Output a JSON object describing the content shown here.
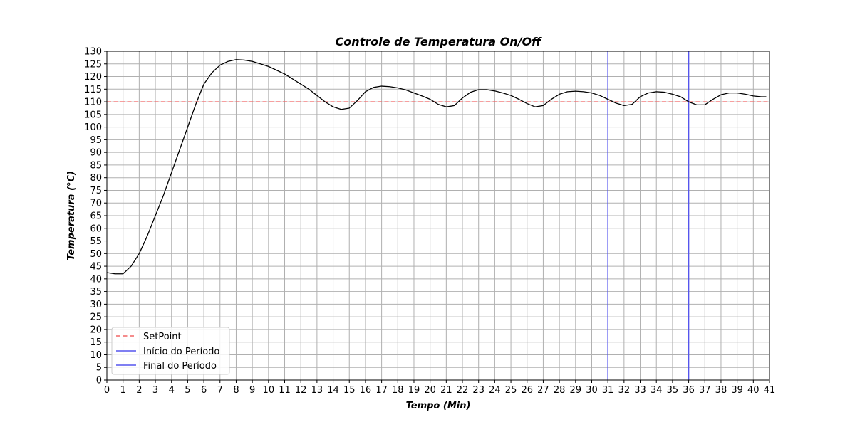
{
  "chart_data": {
    "type": "line",
    "title": "Controle de Temperatura On/Off",
    "xlabel": "Tempo (Min)",
    "ylabel": "Temperatura (°C)",
    "xlim": [
      0,
      41
    ],
    "ylim": [
      0,
      130
    ],
    "x_ticks": [
      0,
      1,
      2,
      3,
      4,
      5,
      6,
      7,
      8,
      9,
      10,
      11,
      12,
      13,
      14,
      15,
      16,
      17,
      18,
      19,
      20,
      21,
      22,
      23,
      24,
      25,
      26,
      27,
      28,
      29,
      30,
      31,
      32,
      33,
      34,
      35,
      36,
      37,
      38,
      39,
      40,
      41
    ],
    "y_ticks": [
      0,
      5,
      10,
      15,
      20,
      25,
      30,
      35,
      40,
      45,
      50,
      55,
      60,
      65,
      70,
      75,
      80,
      85,
      90,
      95,
      100,
      105,
      110,
      115,
      120,
      125,
      130
    ],
    "grid": true,
    "legend_position": "lower-left",
    "series": [
      {
        "name": "Temperatura",
        "color": "#000000",
        "style": "solid",
        "x": [
          0,
          0.5,
          1,
          1.5,
          2,
          2.5,
          3,
          3.5,
          4,
          4.5,
          5,
          5.5,
          6,
          6.5,
          7,
          7.5,
          8,
          8.5,
          9,
          9.5,
          10,
          10.5,
          11,
          11.5,
          12,
          12.5,
          13,
          13.5,
          14,
          14.5,
          15,
          15.5,
          16,
          16.5,
          17,
          17.5,
          18,
          18.5,
          19,
          19.5,
          20,
          20.5,
          21,
          21.5,
          22,
          22.5,
          23,
          23.5,
          24,
          24.5,
          25,
          25.5,
          26,
          26.5,
          27,
          27.5,
          28,
          28.5,
          29,
          29.5,
          30,
          30.5,
          31,
          31.5,
          32,
          32.5,
          33,
          33.5,
          34,
          34.5,
          35,
          35.5,
          36,
          36.5,
          37,
          37.5,
          38,
          38.5,
          39,
          39.5,
          40,
          40.5,
          40.8
        ],
        "y": [
          42.5,
          42,
          42,
          45,
          50,
          57,
          65,
          73,
          82,
          91,
          100,
          109,
          117,
          121.5,
          124.5,
          126,
          126.7,
          126.5,
          126,
          125,
          124,
          122.5,
          121,
          119,
          117,
          115,
          112.5,
          110,
          108,
          107,
          107.5,
          110.5,
          114,
          115.7,
          116.2,
          116,
          115.5,
          114.7,
          113.5,
          112.3,
          111,
          109,
          108,
          108.5,
          111.5,
          113.8,
          114.8,
          114.8,
          114.3,
          113.5,
          112.5,
          111,
          109.3,
          108,
          108.5,
          111,
          113,
          114,
          114.2,
          114,
          113.5,
          112.5,
          111,
          109.5,
          108.5,
          109,
          112,
          113.5,
          114,
          113.8,
          113,
          112,
          110,
          108.8,
          108.8,
          111,
          112.8,
          113.5,
          113.5,
          113,
          112.3,
          112,
          112
        ]
      },
      {
        "name": "SetPoint",
        "color": "#f26666",
        "style": "dashed",
        "y_const": 110
      },
      {
        "name": "Início do Período",
        "color": "#5555ee",
        "style": "solid",
        "x_const": 31
      },
      {
        "name": "Final do Período",
        "color": "#5555ee",
        "style": "solid",
        "x_const": 36
      }
    ],
    "legend": [
      "SetPoint",
      "Início do Período",
      "Final do Período"
    ]
  }
}
